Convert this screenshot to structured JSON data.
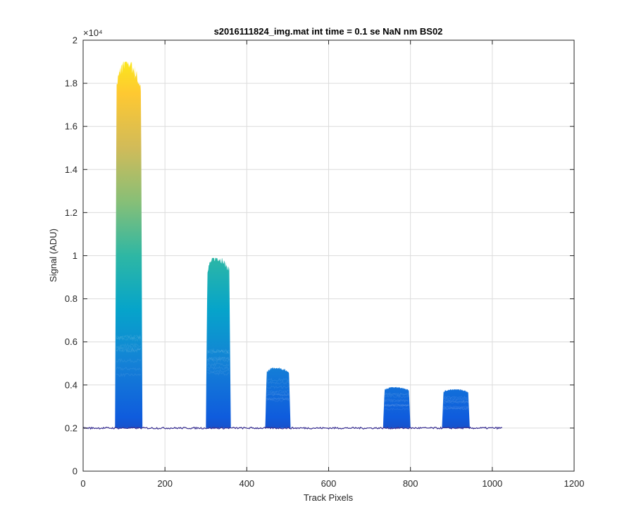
{
  "chart_data": {
    "type": "area",
    "title": "s2016111824_img.mat int time = 0.1 se  NaN nm BS02",
    "xlabel": "Track Pixels",
    "ylabel": "Signal (ADU)",
    "exponent_label": "×10⁴",
    "xlim": [
      0,
      1200
    ],
    "ylim": [
      0,
      20000
    ],
    "xticks": [
      0,
      200,
      400,
      600,
      800,
      1000,
      1200
    ],
    "xtick_labels": [
      "0",
      "200",
      "400",
      "600",
      "800",
      "1000",
      "1200"
    ],
    "yticks": [
      0,
      2000,
      4000,
      6000,
      8000,
      10000,
      12000,
      14000,
      16000,
      18000,
      20000
    ],
    "ytick_labels": [
      "0",
      "0.2",
      "0.4",
      "0.6",
      "0.8",
      "1",
      "1.2",
      "1.4",
      "1.6",
      "1.8",
      "2"
    ],
    "grid": true,
    "baseline": 2000,
    "x_extent": [
      0,
      1024
    ],
    "bands": [
      {
        "x_start": 78,
        "x_end": 145,
        "peak": 19000,
        "inner_level": 6300
      },
      {
        "x_start": 300,
        "x_end": 361,
        "peak": 9900,
        "inner_level": 5800
      },
      {
        "x_start": 445,
        "x_end": 507,
        "peak": 4800,
        "inner_level": 4300
      },
      {
        "x_start": 733,
        "x_end": 800,
        "peak": 3900,
        "inner_level": 3600
      },
      {
        "x_start": 877,
        "x_end": 945,
        "peak": 3800,
        "inner_level": 3500
      }
    ],
    "colormap": [
      "#352a87",
      "#0f5cdd",
      "#1481d6",
      "#06a4ca",
      "#2eb7a4",
      "#87bf77",
      "#d1bb59",
      "#fec832",
      "#f9fb0e"
    ]
  }
}
